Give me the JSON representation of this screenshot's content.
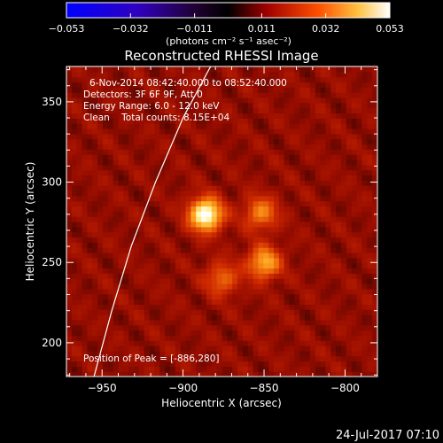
{
  "chart_data": {
    "type": "heatmap",
    "title": "Reconstructed RHESSI Image",
    "xlabel": "Heliocentric X (arcsec)",
    "ylabel": "Heliocentric Y (arcsec)",
    "xlim": [
      -972,
      -780
    ],
    "ylim": [
      179,
      372
    ],
    "xticks": [
      -950,
      -900,
      -850,
      -800
    ],
    "xtick_labels": [
      "−950",
      "−900",
      "−850",
      "−800"
    ],
    "yticks": [
      200,
      250,
      300,
      350
    ],
    "ytick_labels": [
      "200",
      "250",
      "300",
      "350"
    ],
    "colorbar": {
      "ticks": [
        -0.053,
        -0.032,
        -0.011,
        0.011,
        0.032,
        0.053
      ],
      "tick_labels": [
        "−0.053",
        "−0.032",
        "−0.011",
        "0.011",
        "0.032",
        "0.053"
      ],
      "units_label": "(photons cm⁻² s⁻¹ asec⁻²)",
      "colors": [
        "#0000ff",
        "#4a0080",
        "#000000",
        "#b01000",
        "#ff6000",
        "#ffff80",
        "#ffffff"
      ]
    },
    "annotations": [
      "6-Nov-2014 08:42:40.000 to 08:52:40.000",
      "Detectors: 3F 6F 9F, Att 0",
      "Energy Range: 6.0 - 12.0 keV",
      "Clean    Total counts: 8.15E+04"
    ],
    "peak_label": "Position of Peak = [-886,280]",
    "peak": [
      -886,
      280
    ],
    "sources": [
      {
        "x": -886,
        "y": 280,
        "intensity": 1.0
      },
      {
        "x": -850,
        "y": 250,
        "intensity": 0.62
      },
      {
        "x": -852,
        "y": 281,
        "intensity": 0.48
      },
      {
        "x": -876,
        "y": 240,
        "intensity": 0.4
      }
    ],
    "limb_curve": [
      [
        -955,
        179
      ],
      [
        -944,
        220
      ],
      [
        -932,
        260
      ],
      [
        -917,
        300
      ],
      [
        -900,
        340
      ],
      [
        -883,
        372
      ]
    ],
    "background_level": 0.18
  },
  "footer": {
    "timestamp": "24-Jul-2017 07:10"
  }
}
